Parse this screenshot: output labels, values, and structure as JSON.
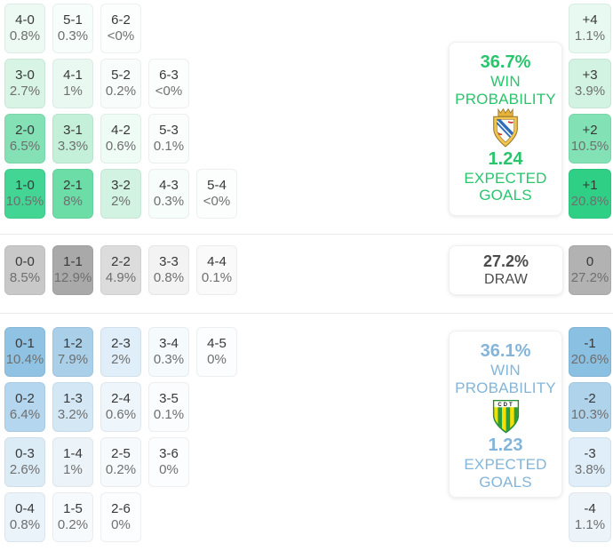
{
  "home": {
    "rows": [
      [
        {
          "score": "4-0",
          "pct": "0.8%",
          "bg": "#ecfaf3"
        },
        {
          "score": "5-1",
          "pct": "0.3%",
          "bg": "#f7fdfa"
        },
        {
          "score": "6-2",
          "pct": "<0%",
          "bg": "#fcfefd"
        }
      ],
      [
        {
          "score": "3-0",
          "pct": "2.7%",
          "bg": "#d7f4e5"
        },
        {
          "score": "4-1",
          "pct": "1%",
          "bg": "#e9f9f1"
        },
        {
          "score": "5-2",
          "pct": "0.2%",
          "bg": "#f8fdfb"
        },
        {
          "score": "6-3",
          "pct": "<0%",
          "bg": "#fcfefd"
        }
      ],
      [
        {
          "score": "2-0",
          "pct": "6.5%",
          "bg": "#84e1b5"
        },
        {
          "score": "3-1",
          "pct": "3.3%",
          "bg": "#c4f0d9"
        },
        {
          "score": "4-2",
          "pct": "0.6%",
          "bg": "#effbf5"
        },
        {
          "score": "5-3",
          "pct": "0.1%",
          "bg": "#fafdfc"
        }
      ],
      [
        {
          "score": "1-0",
          "pct": "10.5%",
          "bg": "#42d593"
        },
        {
          "score": "2-1",
          "pct": "8%",
          "bg": "#6cdda7"
        },
        {
          "score": "3-2",
          "pct": "2%",
          "bg": "#d2f3e2"
        },
        {
          "score": "4-3",
          "pct": "0.3%",
          "bg": "#f7fdfa"
        },
        {
          "score": "5-4",
          "pct": "<0%",
          "bg": "#fcfefd"
        }
      ]
    ],
    "diffs": [
      {
        "label": "+4",
        "pct": "1.1%",
        "bg": "#e8f9f1"
      },
      {
        "label": "+3",
        "pct": "3.9%",
        "bg": "#d2f3e2"
      },
      {
        "label": "+2",
        "pct": "10.5%",
        "bg": "#83e2b5"
      },
      {
        "label": "+1",
        "pct": "20.8%",
        "bg": "#2fd086"
      }
    ],
    "card": {
      "probability": "36.7%",
      "probability_label": "WIN PROBABILITY",
      "expected_goals": "1.24",
      "expected_goals_label": "EXPECTED GOALS",
      "accent": "#28c56d"
    }
  },
  "draw": {
    "row": [
      {
        "score": "0-0",
        "pct": "8.5%",
        "bg": "#c8c8c8"
      },
      {
        "score": "1-1",
        "pct": "12.9%",
        "bg": "#a9a9a9"
      },
      {
        "score": "2-2",
        "pct": "4.9%",
        "bg": "#dcdcdc"
      },
      {
        "score": "3-3",
        "pct": "0.8%",
        "bg": "#f3f3f3"
      },
      {
        "score": "4-4",
        "pct": "0.1%",
        "bg": "#fafafa"
      }
    ],
    "diff": {
      "label": "0",
      "pct": "27.2%",
      "bg": "#b2b2b2"
    },
    "card": {
      "probability": "27.2%",
      "label": "DRAW",
      "accent": "#4c4c4c"
    }
  },
  "away": {
    "rows": [
      [
        {
          "score": "0-1",
          "pct": "10.4%",
          "bg": "#90c3e3"
        },
        {
          "score": "1-2",
          "pct": "7.9%",
          "bg": "#aacfe9"
        },
        {
          "score": "2-3",
          "pct": "2%",
          "bg": "#dfeef8"
        },
        {
          "score": "3-4",
          "pct": "0.3%",
          "bg": "#f5fafd"
        },
        {
          "score": "4-5",
          "pct": "0%",
          "bg": "#fcfdfe"
        }
      ],
      [
        {
          "score": "0-2",
          "pct": "6.4%",
          "bg": "#b4d6ee"
        },
        {
          "score": "1-3",
          "pct": "3.2%",
          "bg": "#d3e7f5"
        },
        {
          "score": "2-4",
          "pct": "0.6%",
          "bg": "#eff6fb"
        },
        {
          "score": "3-5",
          "pct": "0.1%",
          "bg": "#fafcfd"
        }
      ],
      [
        {
          "score": "0-3",
          "pct": "2.6%",
          "bg": "#dcecf7"
        },
        {
          "score": "1-4",
          "pct": "1%",
          "bg": "#ecf4fa"
        },
        {
          "score": "2-5",
          "pct": "0.2%",
          "bg": "#f7fafd"
        },
        {
          "score": "3-6",
          "pct": "0%",
          "bg": "#fcfdfe"
        }
      ],
      [
        {
          "score": "0-4",
          "pct": "0.8%",
          "bg": "#eaf3fa"
        },
        {
          "score": "1-5",
          "pct": "0.2%",
          "bg": "#f7fafd"
        },
        {
          "score": "2-6",
          "pct": "0%",
          "bg": "#fcfdfe"
        }
      ]
    ],
    "diffs": [
      {
        "label": "-1",
        "pct": "20.6%",
        "bg": "#8ac0e1"
      },
      {
        "label": "-2",
        "pct": "10.3%",
        "bg": "#aed3eb"
      },
      {
        "label": "-3",
        "pct": "3.8%",
        "bg": "#dfeef8"
      },
      {
        "label": "-4",
        "pct": "1.1%",
        "bg": "#ecf4fa"
      }
    ],
    "card": {
      "probability": "36.1%",
      "probability_label": "WIN PROBABILITY",
      "expected_goals": "1.23",
      "expected_goals_label": "EXPECTED GOALS",
      "accent": "#83b5da"
    }
  },
  "chart_data": {
    "type": "heatmap",
    "title": "Correct score probability matrix with win/draw probabilities and expected goals",
    "home_win": {
      "win_probability_pct": 36.7,
      "expected_goals": 1.24,
      "score_probabilities_pct": {
        "4-0": 0.8,
        "5-1": 0.3,
        "6-2": "<0",
        "3-0": 2.7,
        "4-1": 1,
        "5-2": 0.2,
        "6-3": "<0",
        "2-0": 6.5,
        "3-1": 3.3,
        "4-2": 0.6,
        "5-3": 0.1,
        "1-0": 10.5,
        "2-1": 8,
        "3-2": 2,
        "4-3": 0.3,
        "5-4": "<0"
      },
      "goal_difference_pct": {
        "+4": 1.1,
        "+3": 3.9,
        "+2": 10.5,
        "+1": 20.8
      }
    },
    "draw": {
      "probability_pct": 27.2,
      "score_probabilities_pct": {
        "0-0": 8.5,
        "1-1": 12.9,
        "2-2": 4.9,
        "3-3": 0.8,
        "4-4": 0.1
      },
      "goal_difference_pct": {
        "0": 27.2
      }
    },
    "away_win": {
      "win_probability_pct": 36.1,
      "expected_goals": 1.23,
      "score_probabilities_pct": {
        "0-1": 10.4,
        "1-2": 7.9,
        "2-3": 2,
        "3-4": 0.3,
        "4-5": 0,
        "0-2": 6.4,
        "1-3": 3.2,
        "2-4": 0.6,
        "3-5": 0.1,
        "0-3": 2.6,
        "1-4": 1,
        "2-5": 0.2,
        "3-6": 0,
        "0-4": 0.8,
        "1-5": 0.2,
        "2-6": 0
      },
      "goal_difference_pct": {
        "-1": 20.6,
        "-2": 10.3,
        "-3": 3.8,
        "-4": 1.1
      }
    },
    "legend_position": "none",
    "grid": false
  }
}
